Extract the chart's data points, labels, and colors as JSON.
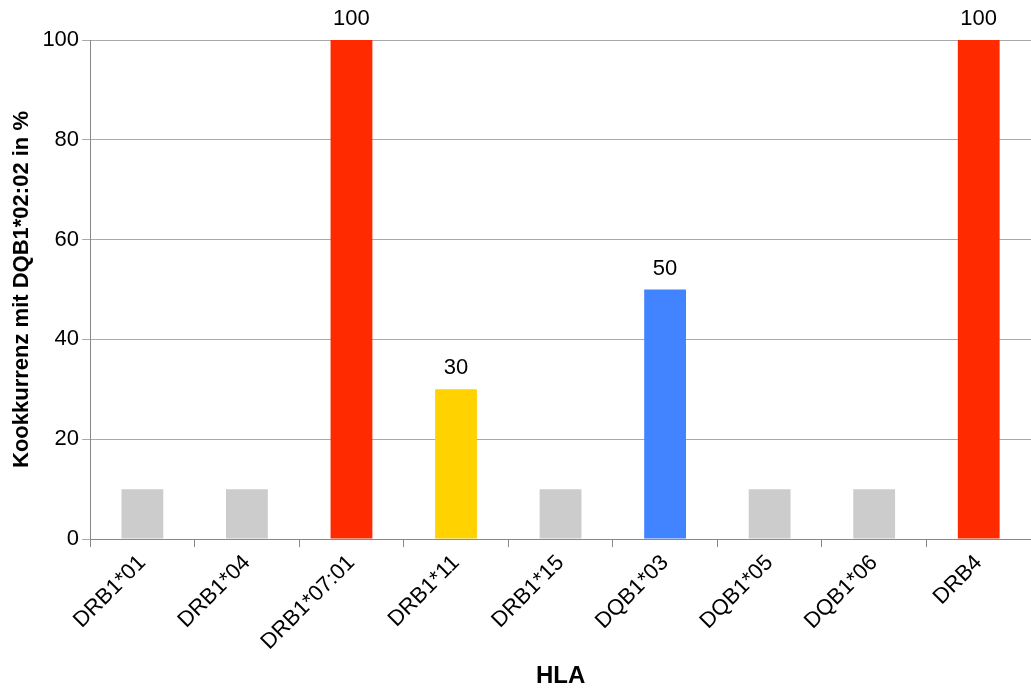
{
  "chart_data": {
    "type": "bar",
    "xlabel": "HLA",
    "ylabel": "Kookkurrenz mit DQB1*02:02 in %",
    "categories": [
      "DRB1*01",
      "DRB1*04",
      "DRB1*07:01",
      "DRB1*11",
      "DRB1*15",
      "DQB1*03",
      "DQB1*05",
      "DQB1*06",
      "DRB4"
    ],
    "values": [
      10,
      10,
      100,
      30,
      10,
      50,
      10,
      10,
      100
    ],
    "colors": [
      "#cccccc",
      "#cccccc",
      "#ff2a00",
      "#ffd200",
      "#cccccc",
      "#4283ff",
      "#cccccc",
      "#cccccc",
      "#ff2a00"
    ],
    "value_labels": [
      null,
      null,
      "100",
      "30",
      null,
      "50",
      null,
      null,
      "100"
    ],
    "ylim": [
      0,
      100
    ],
    "yticks": [
      0,
      20,
      40,
      60,
      80,
      100
    ],
    "grid": "y",
    "legend": false
  }
}
